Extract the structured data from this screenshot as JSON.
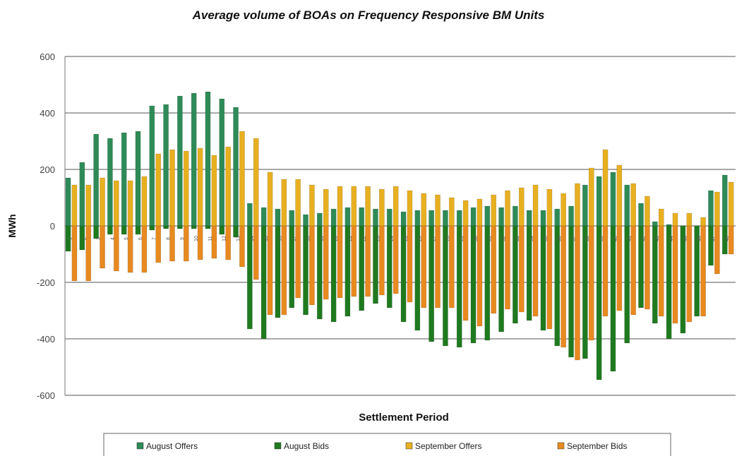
{
  "chart_data": {
    "type": "bar",
    "title": "Average volume of BOAs on Frequency Responsive BM Units",
    "xlabel": "Settlement Period",
    "ylabel": "MWh",
    "ylim": [
      -600,
      600
    ],
    "yticks": [
      600,
      400,
      200,
      0,
      -200,
      -400,
      -600
    ],
    "grid": true,
    "legend_position": "bottom",
    "categories": [
      "1",
      "2",
      "3",
      "4",
      "5",
      "6",
      "7",
      "8",
      "9",
      "10",
      "11",
      "12",
      "13",
      "14",
      "15",
      "16",
      "17",
      "18",
      "19",
      "20",
      "21",
      "22",
      "23",
      "24",
      "25",
      "26",
      "27",
      "28",
      "29",
      "30",
      "31",
      "32",
      "33",
      "34",
      "35",
      "36",
      "37",
      "38",
      "39",
      "40",
      "41",
      "42",
      "43",
      "44",
      "45",
      "46",
      "47",
      "48"
    ],
    "series": [
      {
        "name": "August Offers",
        "color": "#2e8b57",
        "values": [
          170,
          225,
          325,
          310,
          330,
          335,
          425,
          430,
          460,
          470,
          475,
          450,
          420,
          80,
          65,
          60,
          55,
          40,
          45,
          60,
          65,
          65,
          60,
          60,
          50,
          55,
          55,
          55,
          55,
          65,
          70,
          65,
          70,
          55,
          55,
          60,
          70,
          145,
          175,
          190,
          145,
          80,
          15,
          5,
          0,
          0,
          125,
          180
        ]
      },
      {
        "name": "August Bids",
        "color": "#1f7a1f",
        "values": [
          -90,
          -85,
          -45,
          -30,
          -30,
          -30,
          -15,
          -10,
          -10,
          -10,
          -10,
          -30,
          -40,
          -365,
          -400,
          -325,
          -290,
          -315,
          -330,
          -340,
          -320,
          -300,
          -275,
          -290,
          -340,
          -370,
          -410,
          -425,
          -430,
          -415,
          -405,
          -375,
          -345,
          -335,
          -370,
          -425,
          -465,
          -470,
          -545,
          -515,
          -415,
          -290,
          -345,
          -400,
          -380,
          -320,
          -140,
          -100
        ]
      },
      {
        "name": "September Offers",
        "color": "#e8b020",
        "values": [
          145,
          145,
          170,
          160,
          160,
          175,
          255,
          270,
          265,
          275,
          250,
          280,
          335,
          310,
          190,
          165,
          165,
          145,
          130,
          140,
          140,
          140,
          130,
          140,
          125,
          115,
          110,
          100,
          90,
          95,
          110,
          125,
          135,
          145,
          130,
          115,
          150,
          205,
          270,
          215,
          150,
          105,
          60,
          45,
          45,
          30,
          120,
          155
        ]
      },
      {
        "name": "September Bids",
        "color": "#e88a20",
        "values": [
          -195,
          -195,
          -150,
          -160,
          -165,
          -165,
          -130,
          -125,
          -125,
          -120,
          -115,
          -120,
          -145,
          -190,
          -315,
          -315,
          -255,
          -280,
          -260,
          -255,
          -250,
          -250,
          -245,
          -240,
          -270,
          -290,
          -290,
          -290,
          -335,
          -355,
          -310,
          -295,
          -305,
          -320,
          -365,
          -430,
          -475,
          -405,
          -320,
          -300,
          -315,
          -295,
          -320,
          -345,
          -340,
          -320,
          -170,
          -100
        ]
      }
    ]
  }
}
